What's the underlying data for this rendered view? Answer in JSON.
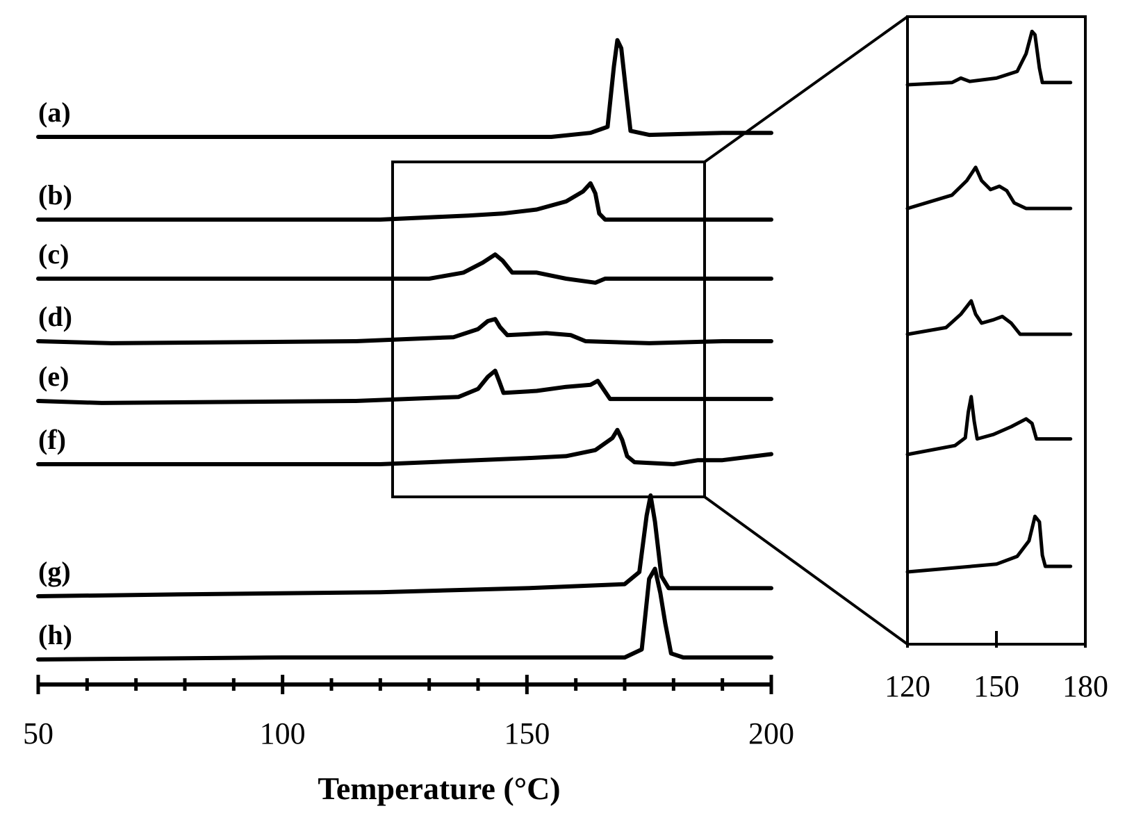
{
  "chart_data": [
    {
      "type": "line",
      "xlabel": "Temperature (°C)",
      "ylabel": "",
      "xlim": [
        50,
        200
      ],
      "x_ticks": [
        "50",
        "100",
        "150",
        "200"
      ],
      "legend": "none",
      "grid": false,
      "series": [
        {
          "label": "(a)",
          "points": [
            [
              50,
              0
            ],
            [
              155,
              0
            ],
            [
              163,
              2
            ],
            [
              166.5,
              5
            ],
            [
              167.8,
              35
            ],
            [
              168.5,
              48
            ],
            [
              169.3,
              44
            ],
            [
              170.4,
              20
            ],
            [
              171.2,
              3
            ],
            [
              175,
              1
            ],
            [
              190,
              2
            ],
            [
              200,
              2
            ]
          ]
        },
        {
          "label": "(b)",
          "points": [
            [
              50,
              0
            ],
            [
              120,
              0
            ],
            [
              138,
              2
            ],
            [
              145,
              3
            ],
            [
              152,
              5
            ],
            [
              158,
              9
            ],
            [
              161.5,
              14
            ],
            [
              163,
              18
            ],
            [
              164,
              13
            ],
            [
              164.8,
              3
            ],
            [
              166,
              0
            ],
            [
              200,
              0
            ]
          ]
        },
        {
          "label": "(c)",
          "points": [
            [
              50,
              0
            ],
            [
              130,
              0
            ],
            [
              137,
              3
            ],
            [
              141,
              8
            ],
            [
              143.5,
              12
            ],
            [
              145,
              9
            ],
            [
              147,
              3
            ],
            [
              152,
              3
            ],
            [
              158,
              0
            ],
            [
              164,
              -2
            ],
            [
              166,
              0
            ],
            [
              200,
              0
            ]
          ]
        },
        {
          "label": "(d)",
          "points": [
            [
              50,
              0
            ],
            [
              65,
              -1
            ],
            [
              115,
              0
            ],
            [
              135,
              2
            ],
            [
              140,
              6
            ],
            [
              142,
              10
            ],
            [
              143.5,
              11
            ],
            [
              144.5,
              7
            ],
            [
              146,
              3
            ],
            [
              154,
              4
            ],
            [
              159,
              3
            ],
            [
              162,
              0
            ],
            [
              175,
              -1
            ],
            [
              190,
              0
            ],
            [
              200,
              0
            ]
          ]
        },
        {
          "label": "(e)",
          "points": [
            [
              50,
              0
            ],
            [
              63,
              -1
            ],
            [
              115,
              0
            ],
            [
              136,
              2
            ],
            [
              140,
              6
            ],
            [
              142,
              12
            ],
            [
              143.5,
              15
            ],
            [
              144.3,
              10
            ],
            [
              145.2,
              4
            ],
            [
              152,
              5
            ],
            [
              158,
              7
            ],
            [
              163,
              8
            ],
            [
              164.5,
              10
            ],
            [
              165.6,
              6
            ],
            [
              167,
              1
            ],
            [
              200,
              1
            ]
          ]
        },
        {
          "label": "(f)",
          "points": [
            [
              50,
              0
            ],
            [
              120,
              0
            ],
            [
              150,
              3
            ],
            [
              158,
              4
            ],
            [
              164,
              7
            ],
            [
              167.5,
              13
            ],
            [
              168.5,
              17
            ],
            [
              169.5,
              12
            ],
            [
              170.5,
              4
            ],
            [
              172,
              1
            ],
            [
              180,
              0
            ],
            [
              185,
              2
            ],
            [
              190,
              2
            ],
            [
              200,
              5
            ]
          ]
        },
        {
          "label": "(g)",
          "points": [
            [
              50,
              0
            ],
            [
              82,
              1
            ],
            [
              120,
              2
            ],
            [
              150,
              4
            ],
            [
              170,
              6
            ],
            [
              173,
              12
            ],
            [
              174.5,
              40
            ],
            [
              175.3,
              50
            ],
            [
              176.2,
              37
            ],
            [
              177.5,
              10
            ],
            [
              179,
              4
            ],
            [
              200,
              4
            ]
          ]
        },
        {
          "label": "(h)",
          "points": [
            [
              50,
              0
            ],
            [
              100,
              1
            ],
            [
              150,
              1
            ],
            [
              170,
              1
            ],
            [
              173.5,
              5
            ],
            [
              175,
              40
            ],
            [
              176.2,
              45
            ],
            [
              177.3,
              33
            ],
            [
              178.3,
              18
            ],
            [
              179.5,
              3
            ],
            [
              182,
              1
            ],
            [
              200,
              1
            ]
          ]
        }
      ]
    },
    {
      "type": "line",
      "xlabel": "",
      "ylabel": "",
      "xlim": [
        120,
        180
      ],
      "x_ticks": [
        "120",
        "150",
        "180"
      ],
      "legend": "none",
      "grid": false,
      "series": [
        {
          "label": "",
          "points": [
            [
              120,
              0
            ],
            [
              135,
              2
            ],
            [
              138,
              6
            ],
            [
              141,
              3
            ],
            [
              150,
              6
            ],
            [
              157,
              12
            ],
            [
              160,
              28
            ],
            [
              162,
              48
            ],
            [
              163,
              45
            ],
            [
              164.5,
              15
            ],
            [
              165.5,
              2
            ],
            [
              175,
              2
            ]
          ]
        },
        {
          "label": "",
          "points": [
            [
              120,
              0
            ],
            [
              135,
              12
            ],
            [
              140,
              25
            ],
            [
              143,
              37
            ],
            [
              145,
              25
            ],
            [
              148,
              17
            ],
            [
              151,
              20
            ],
            [
              153.5,
              16
            ],
            [
              156,
              5
            ],
            [
              160,
              0
            ],
            [
              175,
              0
            ]
          ]
        },
        {
          "label": "",
          "points": [
            [
              120,
              0
            ],
            [
              133,
              6
            ],
            [
              138,
              18
            ],
            [
              141.5,
              30
            ],
            [
              143,
              18
            ],
            [
              145,
              10
            ],
            [
              149,
              13
            ],
            [
              152,
              16
            ],
            [
              155,
              10
            ],
            [
              158,
              0
            ],
            [
              175,
              0
            ]
          ]
        },
        {
          "label": "",
          "points": [
            [
              120,
              0
            ],
            [
              136,
              8
            ],
            [
              139.5,
              15
            ],
            [
              140.5,
              38
            ],
            [
              141.5,
              52
            ],
            [
              142.5,
              30
            ],
            [
              143.5,
              14
            ],
            [
              149,
              18
            ],
            [
              155,
              25
            ],
            [
              160,
              32
            ],
            [
              162,
              28
            ],
            [
              163.5,
              14
            ],
            [
              165,
              14
            ],
            [
              175,
              14
            ]
          ]
        },
        {
          "label": "",
          "points": [
            [
              120,
              0
            ],
            [
              150,
              7
            ],
            [
              157,
              14
            ],
            [
              161,
              28
            ],
            [
              163,
              50
            ],
            [
              164.5,
              45
            ],
            [
              165.5,
              15
            ],
            [
              166.5,
              5
            ],
            [
              175,
              5
            ]
          ]
        }
      ]
    }
  ]
}
